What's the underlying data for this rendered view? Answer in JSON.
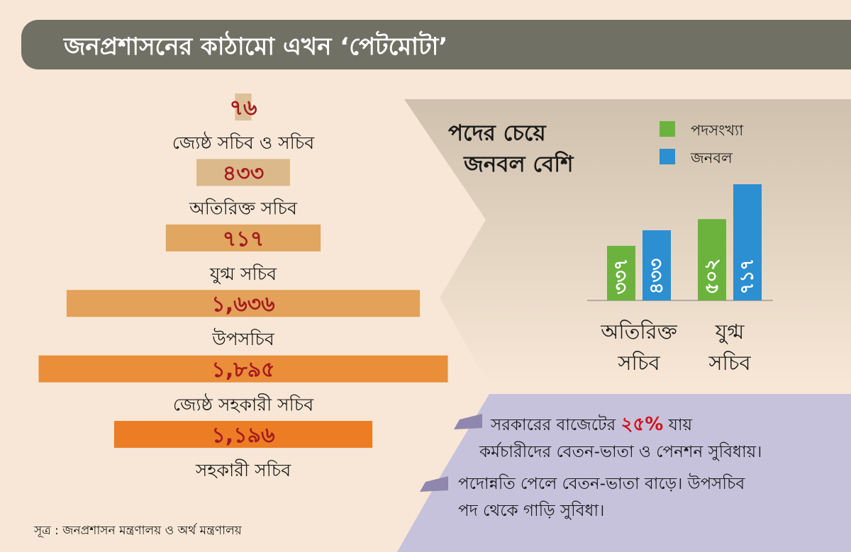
{
  "banner": {
    "title": "জনপ্রশাসনের কাঠামো এখন ‘পেটমোটা’"
  },
  "chart_data": [
    {
      "type": "bar",
      "categories": [
        "জ্যেষ্ঠ সচিব ও সচিব",
        "অতিরিক্ত সচিব",
        "যুগ্ম সচিব",
        "উপসচিব",
        "জ্যেষ্ঠ সহকারী সচিব",
        "সহকারী সচিব"
      ],
      "values": [
        76,
        433,
        717,
        1636,
        1895,
        1196
      ],
      "value_labels": [
        "৭৬",
        "৪৩৩",
        "৭১৭",
        "১,৬৩৬",
        "১,৮৯৫",
        "১,১৯৬"
      ],
      "title": "",
      "orientation": "horizontal-centered",
      "colors": [
        "#dcc098",
        "#dcb98b",
        "#e1a660",
        "#e3a15a",
        "#ea8e39",
        "#ec7d24"
      ],
      "value_label_color": "#a51a1f"
    },
    {
      "type": "bar",
      "title": "পদের চেয়ে জনবল বেশি",
      "categories": [
        "অতিরিক্ত সচিব",
        "যুগ্ম সচিব"
      ],
      "series": [
        {
          "name": "পদসংখ্যা",
          "values": [
            337,
            502
          ],
          "value_labels": [
            "৩৩৭",
            "৫০২"
          ],
          "color": "#6cb33e"
        },
        {
          "name": "জনবল",
          "values": [
            433,
            717
          ],
          "value_labels": [
            "৪৩৩",
            "৭১৭"
          ],
          "color": "#2b8fd1"
        }
      ],
      "legend": "top-right"
    }
  ],
  "notes": [
    {
      "line1_before": "সরকারের বাজেটের ",
      "highlight": "২৫%",
      "line1_after": " যায়",
      "line2": "কর্মচারীদের বেতন-ভাতা ও পেনশন সুবিধায়।"
    },
    {
      "line1": "পদোন্নতি পেলে বেতন-ভাতা বাড়ে। উপসচিব",
      "line2": "পদ থেকে গাড়ি সুবিধা।"
    }
  ],
  "source": "সূত্র : জনপ্রশাসন মন্ত্রণালয় ও অর্থ মন্ত্রণালয়"
}
